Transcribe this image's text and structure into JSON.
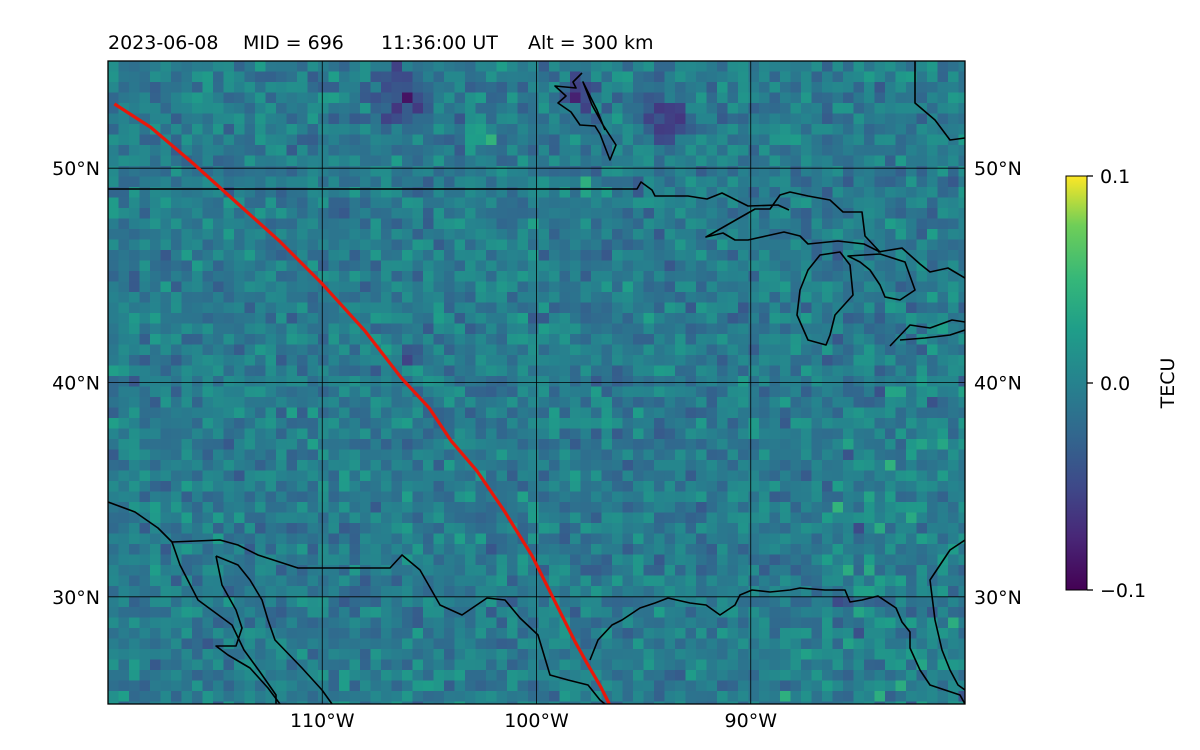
{
  "title": {
    "date": "2023-06-08",
    "mid": "MID = 696",
    "time": "11:36:00  UT",
    "alt": "Alt = 300 km"
  },
  "map": {
    "lon_range": [
      -120,
      -80
    ],
    "lat_range": [
      25,
      55
    ],
    "lon_ticks": [
      {
        "value": -110,
        "label": "110°W"
      },
      {
        "value": -100,
        "label": "100°W"
      },
      {
        "value": -90,
        "label": "90°W"
      }
    ],
    "lat_ticks": [
      {
        "value": 30,
        "label": "30°N"
      },
      {
        "value": 40,
        "label": "40°N"
      },
      {
        "value": 50,
        "label": "50°N"
      }
    ],
    "grid": true,
    "field": "TEC perturbation",
    "colormap": "viridis",
    "track_color": "#e8180a",
    "track": [
      [
        -119.7,
        53
      ],
      [
        -118,
        51.9
      ],
      [
        -116,
        50.2
      ],
      [
        -114,
        48.4
      ],
      [
        -112,
        46.6
      ],
      [
        -110,
        44.6
      ],
      [
        -108,
        42.4
      ],
      [
        -106.3,
        40.2
      ],
      [
        -105,
        38.8
      ],
      [
        -104,
        37.3
      ],
      [
        -102.8,
        35.9
      ],
      [
        -101.5,
        34
      ],
      [
        -100.2,
        31.9
      ],
      [
        -99.3,
        30.1
      ],
      [
        -98.2,
        27.9
      ],
      [
        -97.7,
        27
      ],
      [
        -97,
        25.8
      ],
      [
        -96.6,
        25
      ]
    ]
  },
  "colorbar": {
    "label": "TECU",
    "min": -0.1,
    "max": 0.1,
    "ticks": [
      "0.1",
      "0.0",
      "−0.1"
    ]
  }
}
